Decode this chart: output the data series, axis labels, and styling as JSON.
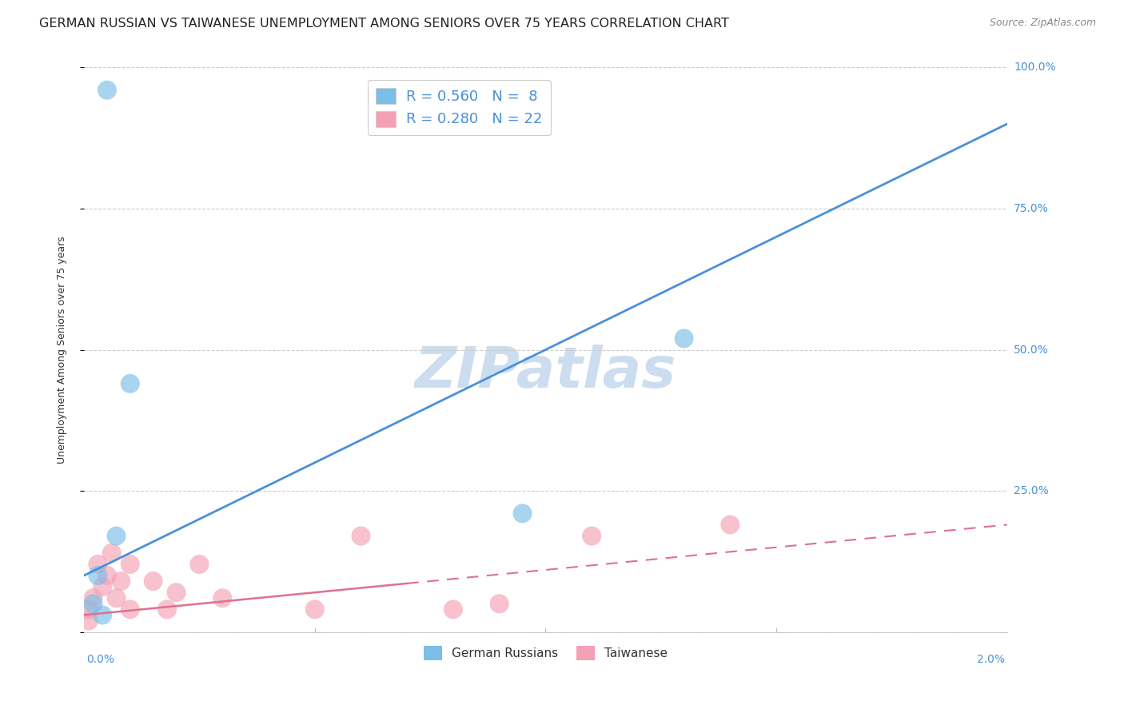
{
  "title": "GERMAN RUSSIAN VS TAIWANESE UNEMPLOYMENT AMONG SENIORS OVER 75 YEARS CORRELATION CHART",
  "source": "Source: ZipAtlas.com",
  "ylabel": "Unemployment Among Seniors over 75 years",
  "xlim": [
    0.0,
    0.02
  ],
  "ylim": [
    0.0,
    1.0
  ],
  "yticks": [
    0.0,
    0.25,
    0.5,
    0.75,
    1.0
  ],
  "ytick_labels": [
    "",
    "25.0%",
    "50.0%",
    "75.0%",
    "100.0%"
  ],
  "german_russian_x": [
    0.0002,
    0.0003,
    0.0004,
    0.0005,
    0.0007,
    0.001,
    0.0095,
    0.013
  ],
  "german_russian_y": [
    0.05,
    0.1,
    0.03,
    0.96,
    0.17,
    0.44,
    0.21,
    0.52
  ],
  "german_russian_R": 0.56,
  "german_russian_N": 8,
  "german_russian_color": "#7bbee8",
  "german_russian_line_color": "#4a90d9",
  "taiwanese_x": [
    0.0001,
    0.0001,
    0.0002,
    0.0003,
    0.0004,
    0.0005,
    0.0006,
    0.0007,
    0.0008,
    0.001,
    0.001,
    0.0015,
    0.0018,
    0.002,
    0.0025,
    0.003,
    0.005,
    0.006,
    0.008,
    0.009,
    0.011,
    0.014
  ],
  "taiwanese_y": [
    0.02,
    0.04,
    0.06,
    0.12,
    0.08,
    0.1,
    0.14,
    0.06,
    0.09,
    0.04,
    0.12,
    0.09,
    0.04,
    0.07,
    0.12,
    0.06,
    0.04,
    0.17,
    0.04,
    0.05,
    0.17,
    0.19
  ],
  "taiwanese_R": 0.28,
  "taiwanese_N": 22,
  "taiwanese_color": "#f4a0b5",
  "taiwanese_line_color": "#e07090",
  "watermark": "ZIPatlas",
  "watermark_color": "#ccddf0",
  "legend_labels": [
    "German Russians",
    "Taiwanese"
  ],
  "legend_box_colors": [
    "#7bbee8",
    "#f4a0b5"
  ],
  "title_fontsize": 11.5,
  "source_fontsize": 9,
  "axis_label_fontsize": 9,
  "tick_fontsize": 10,
  "legend_fontsize": 12,
  "watermark_fontsize": 52,
  "background_color": "#ffffff",
  "grid_color": "#cccccc",
  "blue_tick_color": "#4a90d9"
}
